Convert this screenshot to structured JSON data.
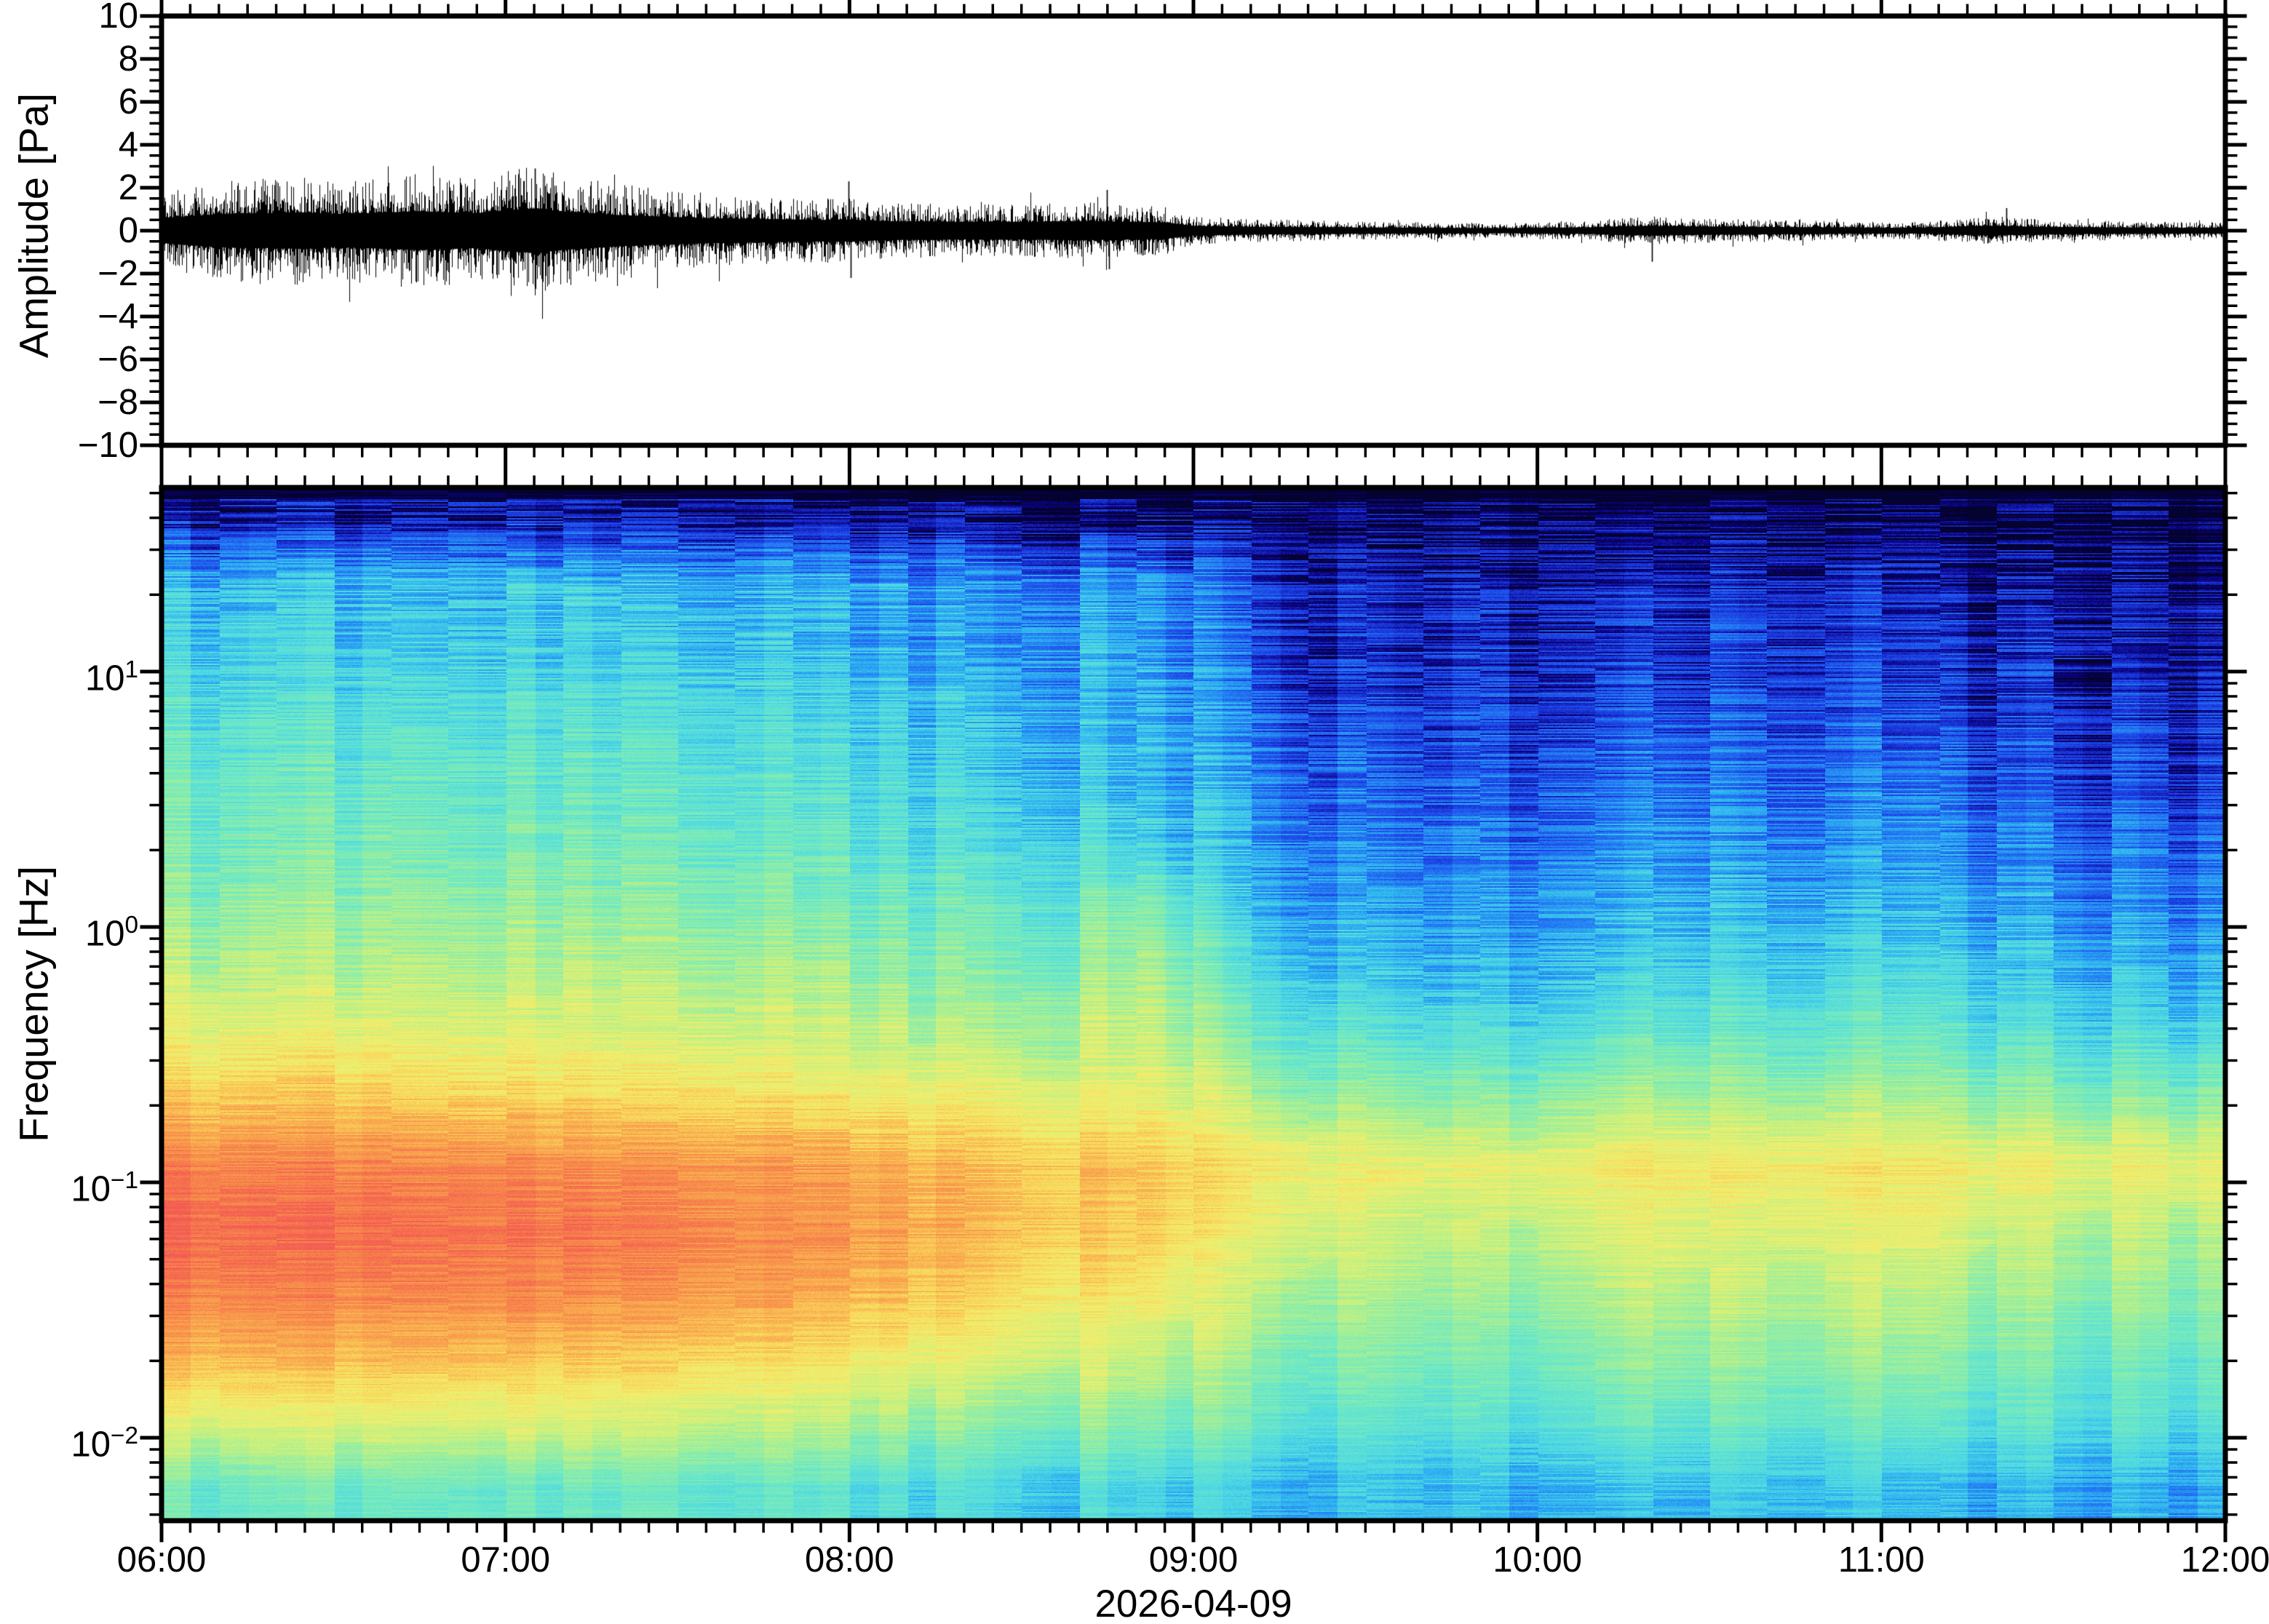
{
  "figure": {
    "background": "#ffffff",
    "frame_color": "#000000",
    "trace_color": "#000000"
  },
  "waveform_panel": {
    "ylabel": "Amplitude [Pa]",
    "ytick_labels": [
      "10",
      "8",
      "6",
      "4",
      "2",
      "0",
      "−2",
      "−4",
      "−6",
      "−8",
      "−10"
    ],
    "ytick_values": [
      10,
      8,
      6,
      4,
      2,
      0,
      -2,
      -4,
      -6,
      -8,
      -10
    ],
    "y_minor_step": 0.5
  },
  "spectrogram_panel": {
    "ylabel": "Frequency [Hz]",
    "ytick_labels": [
      {
        "base": "10",
        "exp": "1",
        "value_hz": 10
      },
      {
        "base": "10",
        "exp": "0",
        "value_hz": 1
      },
      {
        "base": "10",
        "exp": "−1",
        "value_hz": 0.1
      },
      {
        "base": "10",
        "exp": "−2",
        "value_hz": 0.01
      }
    ]
  },
  "xaxis": {
    "labels": [
      "06:00",
      "07:00",
      "08:00",
      "09:00",
      "10:00",
      "11:00",
      "12:00"
    ],
    "start": "06:00",
    "end": "12:00",
    "major_step_min": 60,
    "minor_step_min": 5,
    "date": "2026-04-09"
  },
  "chart_data": [
    {
      "type": "line",
      "name": "infrasound-waveform",
      "title": "",
      "xlabel": "2026-04-09",
      "ylabel": "Amplitude [Pa]",
      "ylim": [
        -10,
        10
      ],
      "x_start": "06:00",
      "x_end": "12:00",
      "envelope_step_min": 5,
      "envelope_pa": [
        1.3,
        1.5,
        1.7,
        1.8,
        1.8,
        1.9,
        1.7,
        1.8,
        1.9,
        2.0,
        1.9,
        1.8,
        2.1,
        2.3,
        2.0,
        1.8,
        1.6,
        1.5,
        1.4,
        1.3,
        1.25,
        1.2,
        1.15,
        1.1,
        1.15,
        1.0,
        0.95,
        0.95,
        0.9,
        0.95,
        0.9,
        0.95,
        1.0,
        0.95,
        0.9,
        0.85,
        0.5,
        0.45,
        0.4,
        0.38,
        0.36,
        0.34,
        0.32,
        0.3,
        0.3,
        0.28,
        0.27,
        0.26,
        0.3,
        0.32,
        0.35,
        0.45,
        0.5,
        0.45,
        0.42,
        0.4,
        0.38,
        0.36,
        0.34,
        0.32,
        0.3,
        0.3,
        0.35,
        0.45,
        0.5,
        0.42,
        0.38,
        0.35,
        0.33,
        0.32,
        0.3,
        0.3
      ],
      "spikes": [
        {
          "t_frac": 0.181,
          "amp_pa": 2.9
        },
        {
          "t_frac": 0.181,
          "amp_pa": -2.6
        },
        {
          "t_frac": 0.333,
          "amp_pa": 2.3
        },
        {
          "t_frac": 0.334,
          "amp_pa": -2.2
        },
        {
          "t_frac": 0.458,
          "amp_pa": 1.9
        },
        {
          "t_frac": 0.459,
          "amp_pa": -1.8
        },
        {
          "t_frac": 0.722,
          "amp_pa": -1.45
        },
        {
          "t_frac": 0.894,
          "amp_pa": 1.05
        }
      ]
    },
    {
      "type": "heatmap",
      "name": "infrasound-spectrogram",
      "xlabel": "2026-04-09",
      "ylabel": "Frequency [Hz]",
      "ylog": true,
      "ylim_hz": [
        0.0047,
        52
      ],
      "x_start": "06:00",
      "x_end": "12:00",
      "cols": 24,
      "col_step_min": 15,
      "row_center_freqs_hz": [
        46,
        25,
        15,
        8.5,
        5,
        2.8,
        1.6,
        0.9,
        0.5,
        0.3,
        0.17,
        0.09,
        0.05,
        0.03,
        0.015,
        0.008
      ],
      "intensity_grid_rows_top_to_bottom": [
        [
          0.08,
          0.08,
          0.07,
          0.07,
          0.07,
          0.06,
          0.06,
          0.06,
          0.05,
          0.05,
          0.04,
          0.04,
          0.04,
          0.03,
          0.03,
          0.03,
          0.03,
          0.03,
          0.03,
          0.02,
          0.02,
          0.02,
          0.02,
          0.02
        ],
        [
          0.32,
          0.31,
          0.31,
          0.3,
          0.3,
          0.29,
          0.28,
          0.28,
          0.27,
          0.26,
          0.25,
          0.24,
          0.16,
          0.12,
          0.09,
          0.08,
          0.1,
          0.12,
          0.09,
          0.1,
          0.11,
          0.08,
          0.06,
          0.05
        ],
        [
          0.35,
          0.34,
          0.34,
          0.33,
          0.33,
          0.32,
          0.31,
          0.3,
          0.29,
          0.28,
          0.27,
          0.26,
          0.18,
          0.13,
          0.1,
          0.1,
          0.12,
          0.14,
          0.11,
          0.12,
          0.13,
          0.1,
          0.08,
          0.07
        ],
        [
          0.4,
          0.39,
          0.39,
          0.38,
          0.38,
          0.37,
          0.36,
          0.35,
          0.34,
          0.32,
          0.3,
          0.28,
          0.22,
          0.16,
          0.13,
          0.12,
          0.14,
          0.17,
          0.14,
          0.15,
          0.16,
          0.13,
          0.11,
          0.1
        ],
        [
          0.44,
          0.43,
          0.43,
          0.42,
          0.42,
          0.41,
          0.4,
          0.39,
          0.37,
          0.35,
          0.33,
          0.3,
          0.25,
          0.2,
          0.17,
          0.16,
          0.18,
          0.22,
          0.18,
          0.2,
          0.22,
          0.17,
          0.14,
          0.12
        ],
        [
          0.47,
          0.46,
          0.46,
          0.45,
          0.45,
          0.44,
          0.43,
          0.42,
          0.41,
          0.39,
          0.37,
          0.34,
          0.28,
          0.24,
          0.21,
          0.2,
          0.23,
          0.27,
          0.23,
          0.25,
          0.27,
          0.22,
          0.19,
          0.17
        ],
        [
          0.52,
          0.51,
          0.51,
          0.5,
          0.5,
          0.49,
          0.48,
          0.47,
          0.46,
          0.45,
          0.44,
          0.48,
          0.33,
          0.28,
          0.26,
          0.25,
          0.28,
          0.32,
          0.28,
          0.3,
          0.32,
          0.27,
          0.24,
          0.22
        ],
        [
          0.58,
          0.57,
          0.57,
          0.56,
          0.56,
          0.55,
          0.54,
          0.53,
          0.52,
          0.51,
          0.5,
          0.55,
          0.4,
          0.35,
          0.31,
          0.28,
          0.33,
          0.38,
          0.34,
          0.36,
          0.38,
          0.33,
          0.3,
          0.28
        ],
        [
          0.66,
          0.65,
          0.65,
          0.64,
          0.63,
          0.62,
          0.61,
          0.6,
          0.59,
          0.58,
          0.57,
          0.6,
          0.48,
          0.44,
          0.4,
          0.38,
          0.42,
          0.46,
          0.42,
          0.44,
          0.46,
          0.41,
          0.38,
          0.36
        ],
        [
          0.76,
          0.75,
          0.75,
          0.74,
          0.73,
          0.72,
          0.71,
          0.7,
          0.69,
          0.67,
          0.65,
          0.66,
          0.58,
          0.55,
          0.52,
          0.5,
          0.54,
          0.57,
          0.54,
          0.56,
          0.57,
          0.53,
          0.5,
          0.49
        ],
        [
          0.88,
          0.87,
          0.87,
          0.86,
          0.85,
          0.84,
          0.83,
          0.82,
          0.8,
          0.78,
          0.76,
          0.75,
          0.7,
          0.68,
          0.66,
          0.65,
          0.68,
          0.7,
          0.68,
          0.69,
          0.7,
          0.67,
          0.66,
          0.66
        ],
        [
          0.92,
          0.91,
          0.91,
          0.9,
          0.89,
          0.88,
          0.86,
          0.84,
          0.82,
          0.79,
          0.76,
          0.74,
          0.66,
          0.63,
          0.6,
          0.58,
          0.62,
          0.65,
          0.62,
          0.64,
          0.65,
          0.6,
          0.57,
          0.56
        ],
        [
          0.88,
          0.87,
          0.86,
          0.86,
          0.85,
          0.84,
          0.82,
          0.8,
          0.77,
          0.74,
          0.7,
          0.68,
          0.6,
          0.57,
          0.54,
          0.52,
          0.56,
          0.6,
          0.56,
          0.58,
          0.6,
          0.54,
          0.51,
          0.5
        ],
        [
          0.78,
          0.77,
          0.77,
          0.76,
          0.75,
          0.74,
          0.72,
          0.7,
          0.67,
          0.64,
          0.61,
          0.58,
          0.53,
          0.5,
          0.48,
          0.46,
          0.5,
          0.53,
          0.5,
          0.52,
          0.53,
          0.48,
          0.45,
          0.44
        ],
        [
          0.64,
          0.63,
          0.63,
          0.62,
          0.61,
          0.6,
          0.58,
          0.56,
          0.54,
          0.52,
          0.5,
          0.48,
          0.45,
          0.43,
          0.41,
          0.4,
          0.43,
          0.45,
          0.43,
          0.44,
          0.45,
          0.41,
          0.39,
          0.38
        ],
        [
          0.45,
          0.44,
          0.44,
          0.43,
          0.42,
          0.42,
          0.41,
          0.4,
          0.39,
          0.38,
          0.36,
          0.35,
          0.33,
          0.32,
          0.31,
          0.3,
          0.31,
          0.33,
          0.31,
          0.32,
          0.32,
          0.3,
          0.28,
          0.27
        ]
      ],
      "colormap": [
        {
          "t": 0.0,
          "hex": "#04022e"
        },
        {
          "t": 0.05,
          "hex": "#0a0382"
        },
        {
          "t": 0.13,
          "hex": "#1b3ae0"
        },
        {
          "t": 0.21,
          "hex": "#2277f2"
        },
        {
          "t": 0.29,
          "hex": "#2fb2f0"
        },
        {
          "t": 0.37,
          "hex": "#4fd8e2"
        },
        {
          "t": 0.45,
          "hex": "#6ee8c4"
        },
        {
          "t": 0.53,
          "hex": "#9aee9e"
        },
        {
          "t": 0.6,
          "hex": "#c8f07e"
        },
        {
          "t": 0.67,
          "hex": "#efee6e"
        },
        {
          "t": 0.73,
          "hex": "#f8d85c"
        },
        {
          "t": 0.79,
          "hex": "#f9b250"
        },
        {
          "t": 0.86,
          "hex": "#f78c4b"
        },
        {
          "t": 0.93,
          "hex": "#f4654f"
        },
        {
          "t": 0.97,
          "hex": "#f25757"
        },
        {
          "t": 1.0,
          "hex": "#ff7e8e"
        }
      ]
    }
  ]
}
